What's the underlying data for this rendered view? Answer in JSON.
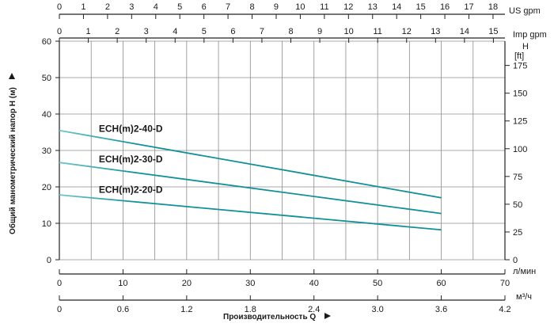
{
  "chart_data": {
    "type": "line",
    "title": "",
    "xlabel": "Производительность Q",
    "ylabel": "Общий манометрический напор H (м)",
    "xlim": [
      0,
      70
    ],
    "ylim": [
      0,
      60
    ],
    "grid": true,
    "x_unit": "л/мин",
    "y_right_unit_top": "H",
    "y_right_unit_bottom": "[ft]",
    "x_ticks": [
      0,
      10,
      20,
      30,
      40,
      50,
      60,
      70
    ],
    "y_ticks": [
      0,
      10,
      20,
      30,
      40,
      50,
      60
    ],
    "secondary_axes": {
      "us_gpm": {
        "unit": "US gpm",
        "ticks": [
          0,
          1,
          2,
          3,
          4,
          5,
          6,
          7,
          8,
          9,
          10,
          11,
          12,
          13,
          14,
          15,
          16,
          17,
          18
        ]
      },
      "imp_gpm": {
        "unit": "Imp gpm",
        "ticks": [
          0,
          1,
          2,
          3,
          4,
          5,
          6,
          7,
          8,
          9,
          10,
          11,
          12,
          13,
          14,
          15
        ]
      },
      "m3h": {
        "unit": "м³/ч",
        "ticks": [
          "0",
          "0.6",
          "1.2",
          "1.8",
          "2.4",
          "3.0",
          "3.6",
          "4.2"
        ]
      },
      "ft": {
        "ticks": [
          0,
          25,
          50,
          75,
          100,
          125,
          150,
          175
        ]
      }
    },
    "series": [
      {
        "name": "ECH(m)2-40-D",
        "x": [
          0,
          60
        ],
        "y": [
          35.5,
          17
        ]
      },
      {
        "name": "ECH(m)2-30-D",
        "x": [
          0,
          60
        ],
        "y": [
          26.7,
          12.7
        ]
      },
      {
        "name": "ECH(m)2-20-D",
        "x": [
          0,
          60
        ],
        "y": [
          17.8,
          8.2
        ]
      }
    ],
    "colors": {
      "curve": "#12909a",
      "curve_start": "#6cc6cc",
      "grid": "#8c8c8c",
      "axis": "#222222"
    }
  }
}
